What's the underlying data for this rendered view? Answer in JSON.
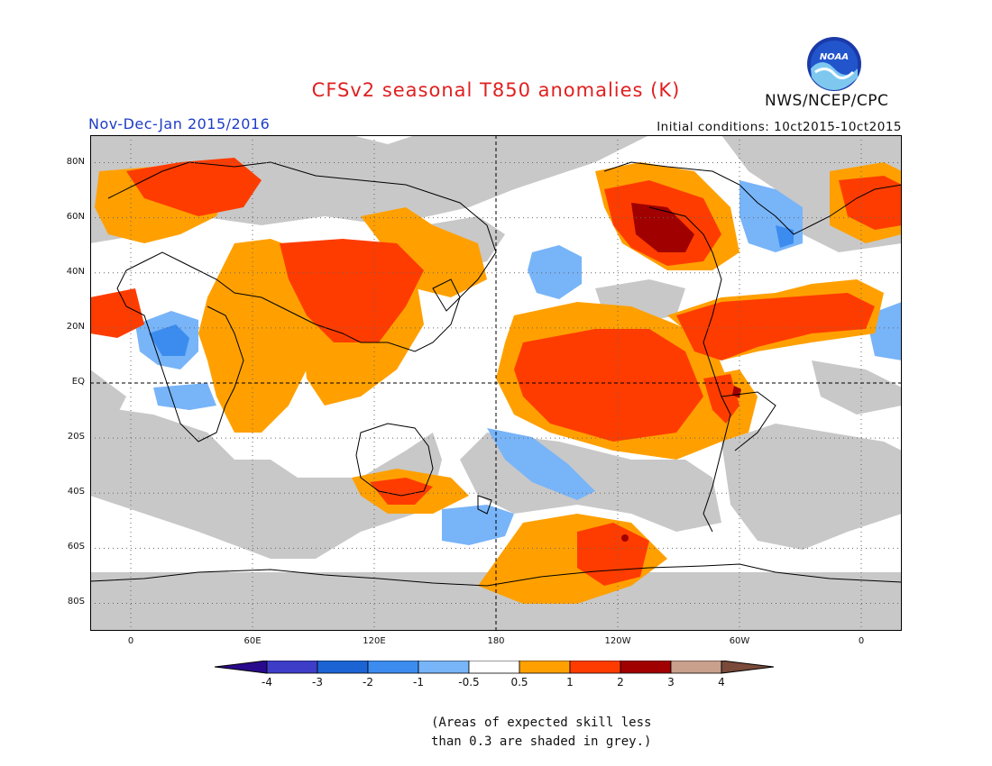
{
  "title": "CFSv2 seasonal T850 anomalies (K)",
  "period": "Nov-Dec-Jan 2015/2016",
  "initial_conditions": "Initial conditions: 10ct2015-10ct2015",
  "agency": "NWS/NCEP/CPC",
  "logo_text": "NOAA",
  "note_lines": [
    "(Areas of expected skill less",
    "than 0.3 are shaded in grey.)"
  ],
  "map": {
    "lat_labels": [
      "80N",
      "60N",
      "40N",
      "20N",
      "EQ",
      "20S",
      "40S",
      "60S",
      "80S"
    ],
    "lat_values": [
      80,
      60,
      40,
      20,
      0,
      -20,
      -40,
      -60,
      -80
    ],
    "lon_labels": [
      "0",
      "60E",
      "120E",
      "180",
      "120W",
      "60W",
      "0"
    ],
    "lon_values": [
      0,
      60,
      120,
      180,
      240,
      300,
      360
    ],
    "lon_range": [
      -20,
      380
    ],
    "lat_range": [
      -90,
      90
    ],
    "grid": "dotted",
    "skill_mask_color": "#c8c8c8"
  },
  "colorbar": {
    "tick_labels": [
      "-4",
      "-3",
      "-2",
      "-1",
      "-0.5",
      "0.5",
      "1",
      "2",
      "3",
      "4"
    ],
    "colors": [
      "#2a0a8c",
      "#3d3dc8",
      "#1c64d4",
      "#3c8cf0",
      "#78b4f8",
      "#ffffff",
      "#ffa000",
      "#ff3c00",
      "#a00000",
      "#c8a08c",
      "#7a4a3a"
    ]
  },
  "colors": {
    "title": "#e02020",
    "period": "#1e3dc8",
    "orange": "#ffa000",
    "red": "#ff3c00",
    "darkred": "#a00000",
    "lightblue": "#78b4f8",
    "blue": "#3c8cf0",
    "grey": "#c8c8c8"
  }
}
